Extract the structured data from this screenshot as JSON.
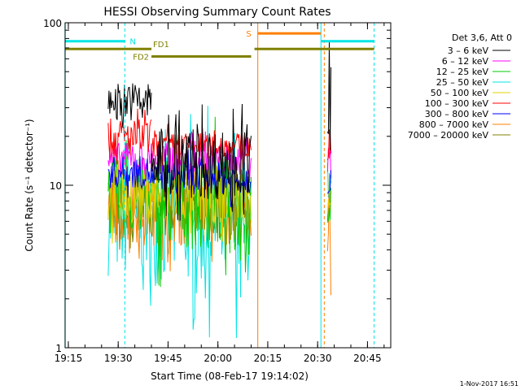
{
  "chart_data": {
    "type": "line",
    "title": "HESSI Observing Summary Count Rates",
    "xlabel": "Start Time (08-Feb-17 19:14:02)",
    "ylabel": "Count Rate (s⁻¹ detector⁻¹)",
    "y_scale": "log",
    "ylim": [
      1,
      100
    ],
    "y_ticks": [
      {
        "value": 1,
        "label": "1"
      },
      {
        "value": 10,
        "label": "10"
      },
      {
        "value": 100,
        "label": "100"
      }
    ],
    "x_range": [
      "19:14:02",
      "20:52:00"
    ],
    "x_ticks": [
      {
        "t": "19:15",
        "label": "19:15"
      },
      {
        "t": "19:30",
        "label": "19:30"
      },
      {
        "t": "19:45",
        "label": "19:45"
      },
      {
        "t": "20:00",
        "label": "20:00"
      },
      {
        "t": "20:15",
        "label": "20:15"
      },
      {
        "t": "20:30",
        "label": "20:30"
      },
      {
        "t": "20:45",
        "label": "20:45"
      }
    ],
    "legend_header": "Det 3,6, Att 0",
    "legend_position": "top-right",
    "grid": false,
    "series": [
      {
        "name": "3 – 6 keV",
        "color": "#000000",
        "segments": [
          {
            "start": "19:27",
            "end": "19:40",
            "level": 33,
            "spread": 0.12
          },
          {
            "start": "19:40",
            "end": "20:10",
            "level": 13.5,
            "spread": 0.22
          },
          {
            "start": "20:33",
            "end": "20:34",
            "level": 30,
            "spread": 0.3
          }
        ]
      },
      {
        "name": "6 – 12 keV",
        "color": "#ff00ff",
        "segments": [
          {
            "start": "19:27",
            "end": "19:40",
            "level": 14.5,
            "spread": 0.1
          },
          {
            "start": "19:40",
            "end": "20:10",
            "level": 14.5,
            "spread": 0.1
          },
          {
            "start": "20:33",
            "end": "20:34",
            "level": 14,
            "spread": 0.15
          }
        ]
      },
      {
        "name": "12 – 25 keV",
        "color": "#00cc00",
        "segments": [
          {
            "start": "19:27",
            "end": "19:40",
            "level": 8.5,
            "spread": 0.25
          },
          {
            "start": "19:40",
            "end": "20:10",
            "level": 8,
            "spread": 0.3
          },
          {
            "start": "20:33",
            "end": "20:34",
            "level": 8,
            "spread": 0.2
          }
        ]
      },
      {
        "name": "25 – 50 keV",
        "color": "#00e5e5",
        "segments": [
          {
            "start": "19:27",
            "end": "19:40",
            "level": 6.2,
            "spread": 0.35
          },
          {
            "start": "19:40",
            "end": "20:10",
            "level": 6,
            "spread": 0.4
          },
          {
            "start": "20:33",
            "end": "20:34",
            "level": 7,
            "spread": 0.2
          }
        ]
      },
      {
        "name": "50 – 100 keV",
        "color": "#e0d000",
        "segments": [
          {
            "start": "19:27",
            "end": "19:40",
            "level": 8.8,
            "spread": 0.18
          },
          {
            "start": "19:40",
            "end": "20:10",
            "level": 8.8,
            "spread": 0.18
          },
          {
            "start": "20:33",
            "end": "20:34",
            "level": 9,
            "spread": 0.15
          }
        ]
      },
      {
        "name": "100 – 300 keV",
        "color": "#ff0000",
        "segments": [
          {
            "start": "19:27",
            "end": "19:40",
            "level": 19.5,
            "spread": 0.12
          },
          {
            "start": "19:40",
            "end": "20:10",
            "level": 17.5,
            "spread": 0.08
          },
          {
            "start": "20:33",
            "end": "20:34",
            "level": 17,
            "spread": 0.12
          }
        ]
      },
      {
        "name": "300 – 800 keV",
        "color": "#0000ff",
        "segments": [
          {
            "start": "19:27",
            "end": "19:40",
            "level": 12,
            "spread": 0.1
          },
          {
            "start": "19:40",
            "end": "20:10",
            "level": 11,
            "spread": 0.1
          },
          {
            "start": "20:33",
            "end": "20:34",
            "level": 11,
            "spread": 0.1
          }
        ]
      },
      {
        "name": "800 – 7000 keV",
        "color": "#ff7f00",
        "segments": [
          {
            "start": "19:27",
            "end": "19:40",
            "level": 7,
            "spread": 0.2
          },
          {
            "start": "19:40",
            "end": "20:10",
            "level": 6.7,
            "spread": 0.2
          },
          {
            "start": "20:33",
            "end": "20:34",
            "level": 6,
            "spread": 0.5
          }
        ]
      },
      {
        "name": "7000 – 20000 keV",
        "color": "#808000",
        "segments": [
          {
            "start": "19:27",
            "end": "19:40",
            "level": 7.8,
            "spread": 0.18
          },
          {
            "start": "19:40",
            "end": "20:10",
            "level": 7.6,
            "spread": 0.18
          },
          {
            "start": "20:33",
            "end": "20:34",
            "level": 7.5,
            "spread": 0.15
          }
        ]
      }
    ],
    "flag_bars": [
      {
        "label": "N",
        "color": "#00e5e5",
        "y": 77,
        "intervals": [
          [
            "19:14",
            "19:32"
          ],
          [
            "20:31",
            "20:47"
          ]
        ]
      },
      {
        "label": "S",
        "color": "#ff7f00",
        "y": 86,
        "intervals": [
          [
            "20:12",
            "20:31"
          ]
        ]
      },
      {
        "label": "FD1",
        "color": "#808000",
        "y": 69,
        "intervals": [
          [
            "19:14",
            "19:40"
          ],
          [
            "20:11",
            "20:47"
          ]
        ]
      },
      {
        "label": "FD2",
        "color": "#808000",
        "y": 62,
        "intervals": [
          [
            "19:40",
            "20:10"
          ]
        ]
      }
    ],
    "markers": [
      {
        "t": "19:14",
        "color": "#00e5e5",
        "style": "solid"
      },
      {
        "t": "19:32",
        "color": "#00e5e5",
        "style": "dashed"
      },
      {
        "t": "20:12",
        "color": "#ff7f00",
        "style": "solid"
      },
      {
        "t": "20:31",
        "color": "#00e5e5",
        "style": "solid"
      },
      {
        "t": "20:32",
        "color": "#ff7f00",
        "style": "dashed"
      },
      {
        "t": "20:47",
        "color": "#00e5e5",
        "style": "dashed"
      }
    ]
  },
  "footer": {
    "timestamp": "1-Nov-2017 16:51"
  },
  "colors": {
    "background": "#ffffff",
    "axis": "#000000"
  }
}
